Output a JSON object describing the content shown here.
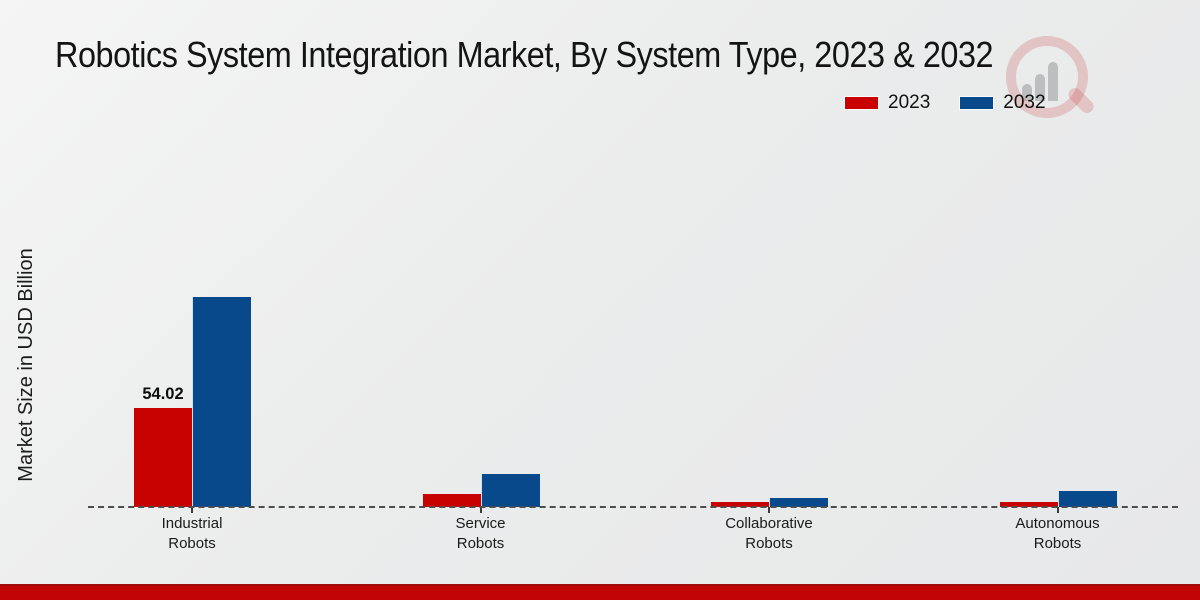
{
  "chart_data": {
    "type": "bar",
    "title": "Robotics System Integration Market, By System Type, 2023 & 2032",
    "ylabel": "Market Size in USD Billion",
    "xlabel": "",
    "categories": [
      "Industrial Robots",
      "Service Robots",
      "Collaborative Robots",
      "Autonomous Robots"
    ],
    "series": [
      {
        "name": "2023",
        "color": "#c80200",
        "values": [
          54.02,
          7.2,
          2.7,
          2.7
        ]
      },
      {
        "name": "2032",
        "color": "#07498b",
        "values": [
          114.6,
          18.0,
          4.9,
          8.7
        ]
      }
    ],
    "value_labels": [
      {
        "series": "2023",
        "category": "Industrial Robots",
        "text": "54.02"
      }
    ],
    "ylim": [
      0,
      125
    ],
    "grid": false,
    "baseline_style": "dashed",
    "legend_position": "top-right"
  },
  "colors": {
    "series_2023": "#c80200",
    "series_2032": "#07498b",
    "footer_accent_bar": "#c20404",
    "background": "#ebecec"
  },
  "watermark": {
    "name": "magnifier-bar-chart logo watermark"
  }
}
